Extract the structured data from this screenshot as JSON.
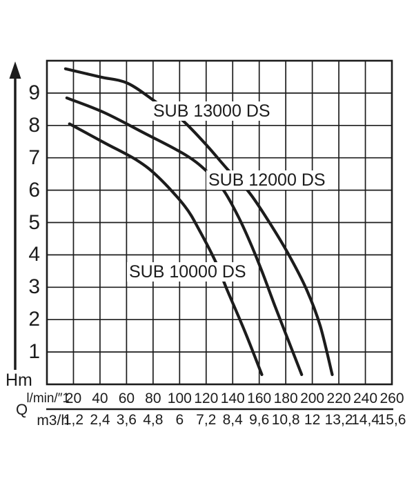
{
  "chart_data": {
    "type": "line",
    "title": "",
    "grid": true,
    "line_color": "#1c1c1c",
    "background": "#ffffff",
    "y_axis": {
      "label": "Hm",
      "ticks": [
        9,
        8,
        7,
        6,
        5,
        4,
        3,
        2,
        1
      ],
      "range": [
        0,
        10
      ]
    },
    "x_axis": {
      "axis_symbol": "Q",
      "label_row1": "l/min/″1",
      "label_row2": "m3/h",
      "ticks_lmin": [
        20,
        40,
        60,
        80,
        100,
        120,
        140,
        160,
        180,
        200,
        220,
        240,
        260
      ],
      "ticks_m3h": [
        "1,2",
        "2,4",
        "3,6",
        "4,8",
        "6",
        "7,2",
        "8,4",
        "9,6",
        "10,8",
        "12",
        "13,2",
        "14,4",
        "15,6"
      ],
      "range_lmin": [
        0,
        260
      ]
    },
    "series": [
      {
        "name": "SUB 13000 DS",
        "points": [
          [
            14,
            9.75
          ],
          [
            40,
            9.5
          ],
          [
            61,
            9.3
          ],
          [
            83,
            8.7
          ],
          [
            101,
            8.2
          ],
          [
            119,
            7.45
          ],
          [
            136,
            6.65
          ],
          [
            153,
            5.9
          ],
          [
            170,
            4.85
          ],
          [
            183,
            3.95
          ],
          [
            196,
            2.9
          ],
          [
            206,
            1.8
          ],
          [
            215,
            0.3
          ]
        ]
      },
      {
        "name": "SUB 12000 DS",
        "points": [
          [
            15,
            8.85
          ],
          [
            43,
            8.4
          ],
          [
            74,
            7.75
          ],
          [
            104,
            7.1
          ],
          [
            120,
            6.6
          ],
          [
            133,
            6.0
          ],
          [
            144,
            5.2
          ],
          [
            153,
            4.4
          ],
          [
            162,
            3.5
          ],
          [
            172,
            2.4
          ],
          [
            182,
            1.35
          ],
          [
            192,
            0.3
          ]
        ]
      },
      {
        "name": "SUB 10000 DS",
        "points": [
          [
            17,
            8.05
          ],
          [
            44,
            7.45
          ],
          [
            68,
            6.92
          ],
          [
            84,
            6.4
          ],
          [
            104,
            5.5
          ],
          [
            115,
            4.75
          ],
          [
            127,
            3.8
          ],
          [
            136,
            2.9
          ],
          [
            149,
            1.65
          ],
          [
            162,
            0.3
          ]
        ]
      }
    ]
  }
}
